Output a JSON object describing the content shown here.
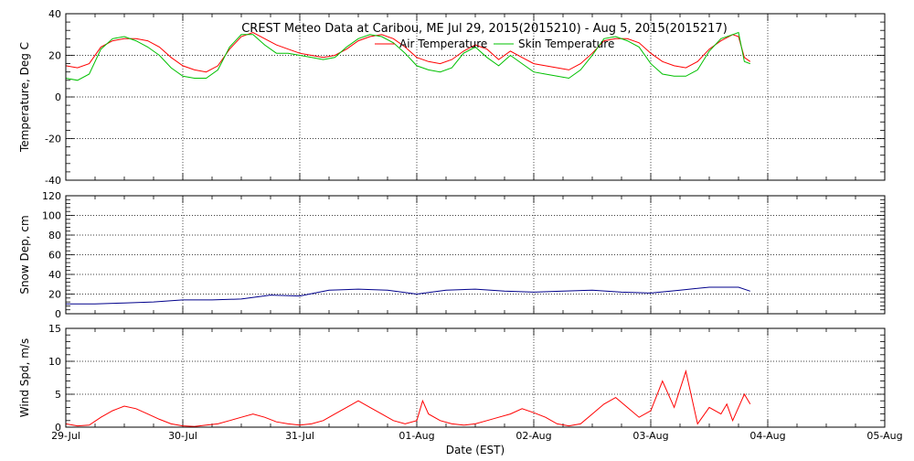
{
  "title": "CREST Meteo Data at Caribou, ME   Jul 29, 2015(2015210) - Aug  5, 2015(2015217)",
  "xlabel": "Date (EST)",
  "x_ticks": [
    "29-Jul",
    "30-Jul",
    "31-Jul",
    "01-Aug",
    "02-Aug",
    "03-Aug",
    "04-Aug",
    "05-Aug"
  ],
  "colors": {
    "air": "#ff0000",
    "skin": "#00c000",
    "snow": "#00008b",
    "wind": "#ff0000",
    "grid": "#000000"
  },
  "chart_data": [
    {
      "type": "line",
      "ylabel": "Temperature, Deg C",
      "ylim": [
        -40,
        40
      ],
      "yticks": [
        -40,
        -20,
        0,
        20,
        40
      ],
      "xlim": [
        0,
        7
      ],
      "grid": true,
      "legend_placement": "top-center",
      "series": [
        {
          "name": "Air Temperature",
          "x": [
            0.0,
            0.1,
            0.2,
            0.3,
            0.4,
            0.5,
            0.6,
            0.7,
            0.8,
            0.9,
            1.0,
            1.1,
            1.2,
            1.3,
            1.4,
            1.5,
            1.6,
            1.7,
            1.8,
            1.9,
            2.0,
            2.1,
            2.2,
            2.3,
            2.4,
            2.5,
            2.6,
            2.7,
            2.8,
            2.9,
            3.0,
            3.1,
            3.2,
            3.3,
            3.4,
            3.5,
            3.6,
            3.7,
            3.8,
            3.9,
            4.0,
            4.1,
            4.2,
            4.3,
            4.4,
            4.5,
            4.6,
            4.7,
            4.8,
            4.9,
            5.0,
            5.1,
            5.2,
            5.3,
            5.4,
            5.5,
            5.6,
            5.7,
            5.75,
            5.8,
            5.85
          ],
          "values": [
            15,
            14,
            16,
            24,
            27,
            28,
            28,
            27,
            24,
            19,
            15,
            13,
            12,
            15,
            23,
            29,
            31,
            28,
            25,
            23,
            21,
            20,
            19,
            20,
            23,
            27,
            29,
            30,
            28,
            24,
            19,
            17,
            16,
            18,
            22,
            25,
            23,
            18,
            22,
            19,
            16,
            15,
            14,
            13,
            16,
            21,
            27,
            28,
            28,
            26,
            21,
            17,
            15,
            14,
            17,
            23,
            27,
            30,
            29,
            19,
            17
          ]
        },
        {
          "name": "Skin Temperature",
          "x": [
            0.0,
            0.1,
            0.2,
            0.3,
            0.4,
            0.5,
            0.6,
            0.7,
            0.8,
            0.9,
            1.0,
            1.1,
            1.2,
            1.3,
            1.4,
            1.5,
            1.6,
            1.7,
            1.8,
            1.9,
            2.0,
            2.1,
            2.2,
            2.3,
            2.4,
            2.5,
            2.6,
            2.7,
            2.8,
            2.9,
            3.0,
            3.1,
            3.2,
            3.3,
            3.4,
            3.5,
            3.6,
            3.7,
            3.8,
            3.9,
            4.0,
            4.1,
            4.2,
            4.3,
            4.4,
            4.5,
            4.6,
            4.7,
            4.8,
            4.9,
            5.0,
            5.1,
            5.2,
            5.3,
            5.4,
            5.5,
            5.6,
            5.7,
            5.75,
            5.8,
            5.85
          ],
          "values": [
            9,
            8,
            11,
            23,
            28,
            29,
            27,
            24,
            20,
            14,
            10,
            9,
            9,
            13,
            24,
            30,
            30,
            25,
            21,
            21,
            20,
            19,
            18,
            19,
            24,
            28,
            30,
            29,
            26,
            21,
            15,
            13,
            12,
            14,
            21,
            24,
            19,
            15,
            20,
            16,
            12,
            11,
            10,
            9,
            13,
            20,
            28,
            29,
            27,
            24,
            16,
            11,
            10,
            10,
            13,
            22,
            28,
            30,
            31,
            17,
            16
          ]
        }
      ]
    },
    {
      "type": "line",
      "ylabel": "Snow Dep, cm",
      "ylim": [
        0,
        120
      ],
      "yticks": [
        0,
        20,
        40,
        60,
        80,
        100,
        120
      ],
      "xlim": [
        0,
        7
      ],
      "grid": true,
      "series": [
        {
          "name": "",
          "x": [
            0.0,
            0.25,
            0.5,
            0.75,
            1.0,
            1.25,
            1.5,
            1.75,
            2.0,
            2.25,
            2.5,
            2.75,
            3.0,
            3.25,
            3.5,
            3.75,
            4.0,
            4.25,
            4.5,
            4.75,
            5.0,
            5.25,
            5.5,
            5.75,
            5.85
          ],
          "values": [
            10,
            10,
            11,
            12,
            14,
            14,
            15,
            19,
            18,
            24,
            25,
            24,
            20,
            24,
            25,
            23,
            22,
            23,
            24,
            22,
            21,
            24,
            27,
            27,
            23
          ]
        }
      ]
    },
    {
      "type": "line",
      "ylabel": "Wind Spd, m/s",
      "ylim": [
        0,
        15
      ],
      "yticks": [
        0,
        5,
        10,
        15
      ],
      "xlim": [
        0,
        7
      ],
      "grid": true,
      "series": [
        {
          "name": "",
          "x": [
            0.0,
            0.1,
            0.2,
            0.3,
            0.4,
            0.5,
            0.6,
            0.7,
            0.8,
            0.9,
            1.0,
            1.1,
            1.2,
            1.3,
            1.4,
            1.5,
            1.6,
            1.7,
            1.8,
            1.9,
            2.0,
            2.1,
            2.2,
            2.3,
            2.4,
            2.5,
            2.6,
            2.7,
            2.8,
            2.9,
            3.0,
            3.05,
            3.1,
            3.2,
            3.3,
            3.4,
            3.5,
            3.6,
            3.7,
            3.8,
            3.9,
            4.0,
            4.1,
            4.2,
            4.3,
            4.4,
            4.5,
            4.6,
            4.7,
            4.8,
            4.9,
            5.0,
            5.1,
            5.2,
            5.3,
            5.4,
            5.5,
            5.6,
            5.65,
            5.7,
            5.75,
            5.8,
            5.85
          ],
          "values": [
            0.5,
            0.2,
            0.3,
            1.5,
            2.5,
            3.2,
            2.8,
            2.0,
            1.2,
            0.5,
            0.2,
            0.1,
            0.3,
            0.5,
            1.0,
            1.5,
            2.0,
            1.5,
            0.8,
            0.5,
            0.3,
            0.5,
            1.0,
            2.0,
            3.0,
            4.0,
            3.0,
            2.0,
            1.0,
            0.5,
            1.0,
            4.0,
            2.0,
            1.0,
            0.5,
            0.3,
            0.5,
            1.0,
            1.5,
            2.0,
            2.8,
            2.2,
            1.5,
            0.5,
            0.2,
            0.5,
            2.0,
            3.5,
            4.5,
            3.0,
            1.5,
            2.5,
            7.0,
            3.0,
            8.5,
            0.5,
            3.0,
            2.0,
            3.5,
            1.0,
            3.0,
            5.0,
            3.5
          ]
        }
      ]
    }
  ]
}
